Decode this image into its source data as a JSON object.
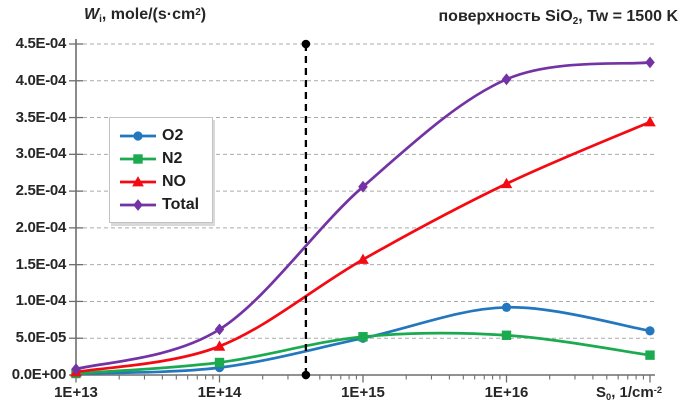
{
  "titles": {
    "chart_title_parts": [
      {
        "t": "поверхность SiO"
      },
      {
        "t": "2",
        "sub": true
      },
      {
        "t": ", Tw = 1500 K"
      }
    ],
    "y_axis_parts": [
      {
        "t": "W",
        "i": true
      },
      {
        "t": "i",
        "sub": true
      },
      {
        "t": ", mole/(s·cm"
      },
      {
        "t": "2",
        "sup": true
      },
      {
        "t": ")"
      }
    ],
    "x_axis_parts": [
      {
        "t": "S"
      },
      {
        "t": "0",
        "sub": true
      },
      {
        "t": ", 1/cm"
      },
      {
        "t": "-2",
        "sup": true
      }
    ]
  },
  "chart_data": {
    "type": "line",
    "title": "поверхность SiO2, Tw = 1500 K",
    "xlabel": "S0, 1/cm^-2",
    "ylabel": "Wi, mole/(s·cm^2)",
    "x_scale": "log",
    "grid": {
      "show": true,
      "color": "#ABABAB",
      "style": "dashed"
    },
    "axis_color": "#6E6E6E",
    "text_color": "#262626",
    "ylim": [
      0,
      0.00045
    ],
    "xlim": [
      10000000000000.0,
      1.1e+17
    ],
    "x": [
      10000000000000.0,
      100000000000000.0,
      1000000000000000.0,
      1e+16,
      1e+17
    ],
    "series": [
      {
        "name": "O2",
        "color": "#2277BE",
        "marker": "circle",
        "values": [
          2e-06,
          1e-05,
          5e-05,
          9.2e-05,
          6e-05
        ]
      },
      {
        "name": "N2",
        "color": "#1CAA50",
        "marker": "square",
        "values": [
          2e-06,
          1.7e-05,
          5.2e-05,
          5.4e-05,
          2.7e-05
        ]
      },
      {
        "name": "NO",
        "color": "#F40A12",
        "marker": "triangle",
        "values": [
          4e-06,
          3.9e-05,
          0.000157,
          0.00026,
          0.000344
        ]
      },
      {
        "name": "Total",
        "color": "#7333A4",
        "marker": "diamond",
        "values": [
          8e-06,
          6.2e-05,
          0.000256,
          0.000402,
          0.000425
        ]
      }
    ],
    "y_ticks": [
      {
        "label": "0.0E+00",
        "value": 0
      },
      {
        "label": "5.0E-05",
        "value": 5e-05
      },
      {
        "label": "1.0E-04",
        "value": 0.0001
      },
      {
        "label": "1.5E-04",
        "value": 0.00015
      },
      {
        "label": "2.0E-04",
        "value": 0.0002
      },
      {
        "label": "2.5E-04",
        "value": 0.00025
      },
      {
        "label": "3.0E-04",
        "value": 0.0003
      },
      {
        "label": "3.5E-04",
        "value": 0.00035
      },
      {
        "label": "4.0E-04",
        "value": 0.0004
      },
      {
        "label": "4.5E-04",
        "value": 0.00045
      }
    ],
    "x_ticks": [
      {
        "label": "1E+13",
        "value": 10000000000000.0
      },
      {
        "label": "1E+14",
        "value": 100000000000000.0
      },
      {
        "label": "1E+15",
        "value": 1000000000000000.0
      },
      {
        "label": "1E+16",
        "value": 1e+16
      }
    ],
    "annotation": {
      "type": "vline",
      "x": 400000000000000.0,
      "color": "#000000",
      "style": "dashed",
      "end_dots": true
    },
    "legend": {
      "position": "upper-left-inside",
      "items": [
        "O2",
        "N2",
        "NO",
        "Total"
      ]
    }
  }
}
